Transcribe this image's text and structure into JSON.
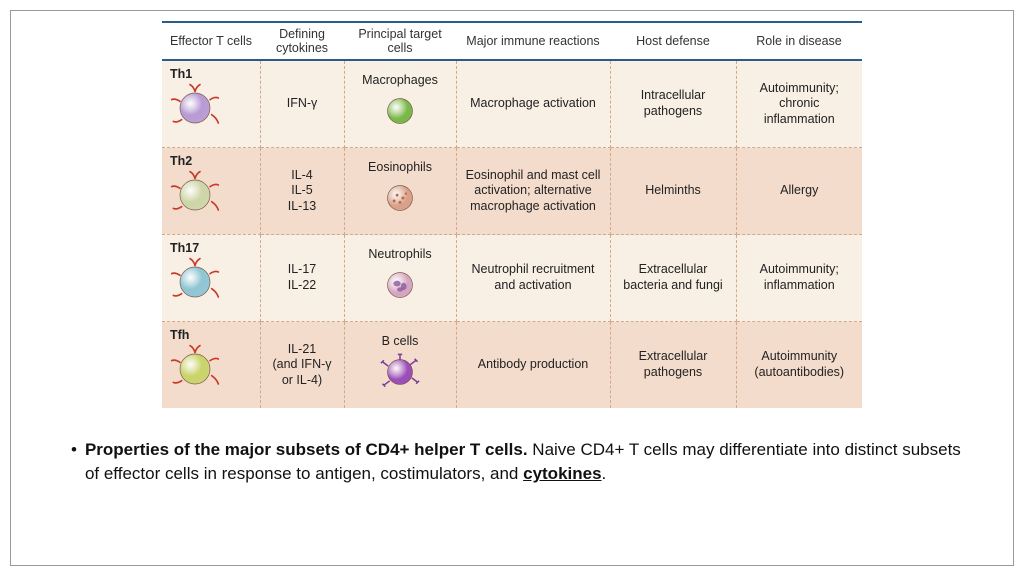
{
  "table": {
    "headers": [
      "Effector T cells",
      "Defining cytokines",
      "Principal target cells",
      "Major immune reactions",
      "Host defense",
      "Role in disease"
    ],
    "rows": [
      {
        "name": "Th1",
        "effector_color": "#b89ad4",
        "cytokines": "IFN-γ",
        "target_name": "Macrophages",
        "target_color": "#7ab84a",
        "target_type": "macrophage",
        "reactions": "Macrophage activation",
        "defense": "Intracellular pathogens",
        "disease": "Autoimmunity; chronic inflammation",
        "row_bg": "normal"
      },
      {
        "name": "Th2",
        "effector_color": "#cdd6a8",
        "cytokines": "IL-4\nIL-5\nIL-13",
        "target_name": "Eosinophils",
        "target_color": "#d9a08a",
        "target_type": "eosinophil",
        "reactions": "Eosinophil and mast cell activation; alternative macrophage activation",
        "defense": "Helminths",
        "disease": "Allergy",
        "row_bg": "alt"
      },
      {
        "name": "Th17",
        "effector_color": "#8fc5d4",
        "cytokines": "IL-17\nIL-22",
        "target_name": "Neutrophils",
        "target_color": "#d6a6c0",
        "target_type": "neutrophil",
        "reactions": "Neutrophil recruitment and activation",
        "defense": "Extracellular bacteria and fungi",
        "disease": "Autoimmunity; inflammation",
        "row_bg": "normal"
      },
      {
        "name": "Tfh",
        "effector_color": "#c9d46a",
        "cytokines": "IL-21\n(and IFN-γ\nor IL-4)",
        "target_name": "B cells",
        "target_color": "#9b4eb8",
        "target_type": "bcell",
        "reactions": "Antibody production",
        "defense": "Extracellular pathogens",
        "disease": "Autoimmunity (autoantibodies)",
        "row_bg": "alt"
      }
    ],
    "tendril_color": "#c83a2a",
    "column_widths_pct": [
      14,
      12,
      16,
      22,
      18,
      18
    ],
    "header_border_color": "#2a5c8a",
    "bg_normal": "#f8efe5",
    "bg_alt": "#f4dccc",
    "dash_color": "#d2a98a"
  },
  "caption": {
    "bold": "Properties of the major subsets of CD4+ helper T cells.",
    "rest1": " Naive CD4+ T cells may differentiate into distinct subsets of effector cells in response to antigen, costimulators, and ",
    "underlined": "cytokines",
    "rest2": "."
  },
  "typography": {
    "table_font_size_pt": 9,
    "caption_font_size_pt": 13
  }
}
